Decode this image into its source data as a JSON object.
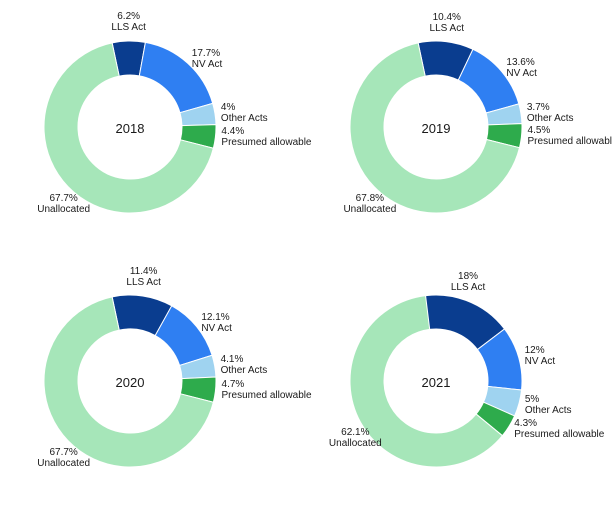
{
  "background_color": "#ffffff",
  "font_family": "Arial, sans-serif",
  "label_fontsize": 10,
  "center_fontsize": 13,
  "colors": {
    "lls_act": "#0a3d8f",
    "nv_act": "#2f7ff2",
    "other_acts": "#9fd3f0",
    "presumed_allowable": "#2eab4c",
    "unallocated": "#a6e6b9"
  },
  "slice_order": [
    "lls_act",
    "nv_act",
    "other_acts",
    "presumed_allowable",
    "unallocated"
  ],
  "slice_names": {
    "lls_act": "LLS Act",
    "nv_act": "NV Act",
    "other_acts": "Other Acts",
    "presumed_allowable": "Presumed allowable",
    "unallocated": "Unallocated"
  },
  "donut": {
    "outer_radius": 86,
    "inner_radius": 52,
    "start_angle_deg": -12,
    "label_gap": 6
  },
  "charts": [
    {
      "year": "2018",
      "values": {
        "lls_act": 6.2,
        "nv_act": 17.7,
        "other_acts": 4.0,
        "presumed_allowable": 4.4,
        "unallocated": 67.7
      }
    },
    {
      "year": "2019",
      "values": {
        "lls_act": 10.4,
        "nv_act": 13.6,
        "other_acts": 3.7,
        "presumed_allowable": 4.5,
        "unallocated": 67.8
      }
    },
    {
      "year": "2020",
      "values": {
        "lls_act": 11.4,
        "nv_act": 12.1,
        "other_acts": 4.1,
        "presumed_allowable": 4.7,
        "unallocated": 67.7
      }
    },
    {
      "year": "2021",
      "values": {
        "lls_act": 18.0,
        "nv_act": 12.0,
        "other_acts": 5.0,
        "presumed_allowable": 4.3,
        "unallocated": 62.1
      }
    }
  ],
  "label_align": {
    "lls_act": "center-below",
    "nv_act": "left",
    "other_acts": "left",
    "presumed_allowable": "left",
    "unallocated": "center-above"
  }
}
